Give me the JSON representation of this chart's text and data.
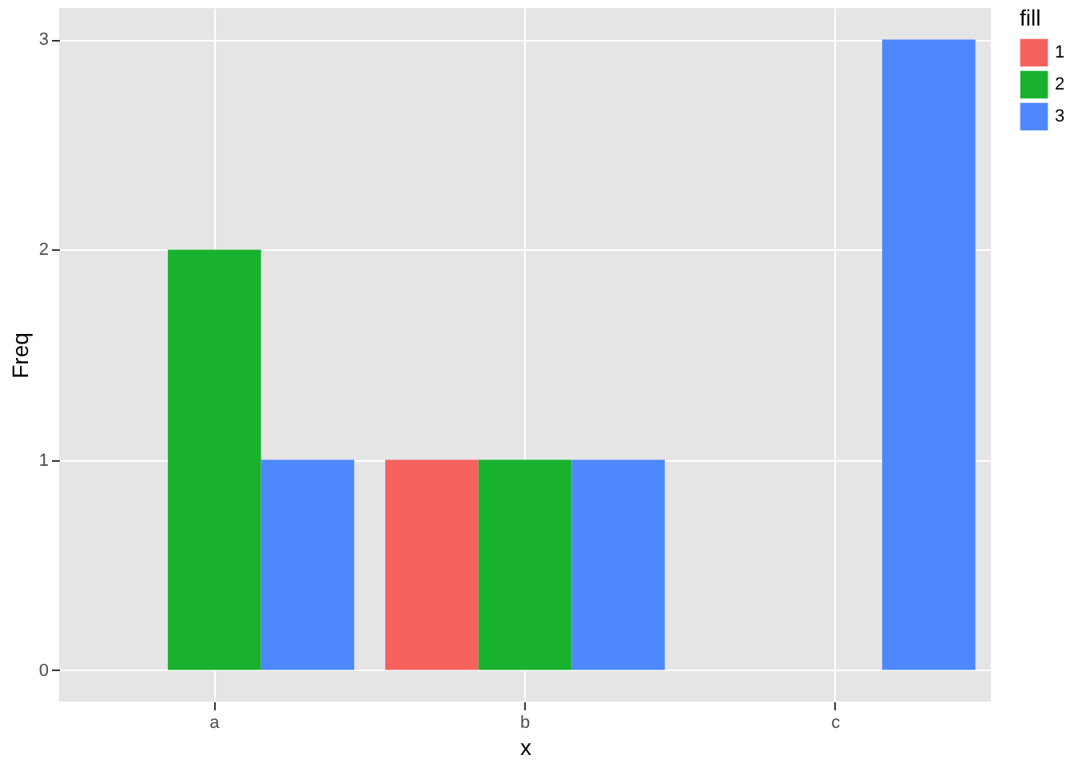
{
  "chart_data": {
    "type": "bar",
    "categories": [
      "a",
      "b",
      "c"
    ],
    "xlabel": "x",
    "ylabel": "Freq",
    "legend_title": "fill",
    "series": [
      {
        "name": "1",
        "color": "#f5625d",
        "values": [
          0,
          1,
          0
        ]
      },
      {
        "name": "2",
        "color": "#19b22f",
        "values": [
          2,
          1,
          0
        ]
      },
      {
        "name": "3",
        "color": "#4e88ff",
        "values": [
          1,
          1,
          3
        ]
      }
    ],
    "ylim": [
      -0.15,
      3.15
    ],
    "yticks": [
      0,
      1,
      2,
      3
    ],
    "grid": true,
    "legend": "right"
  }
}
